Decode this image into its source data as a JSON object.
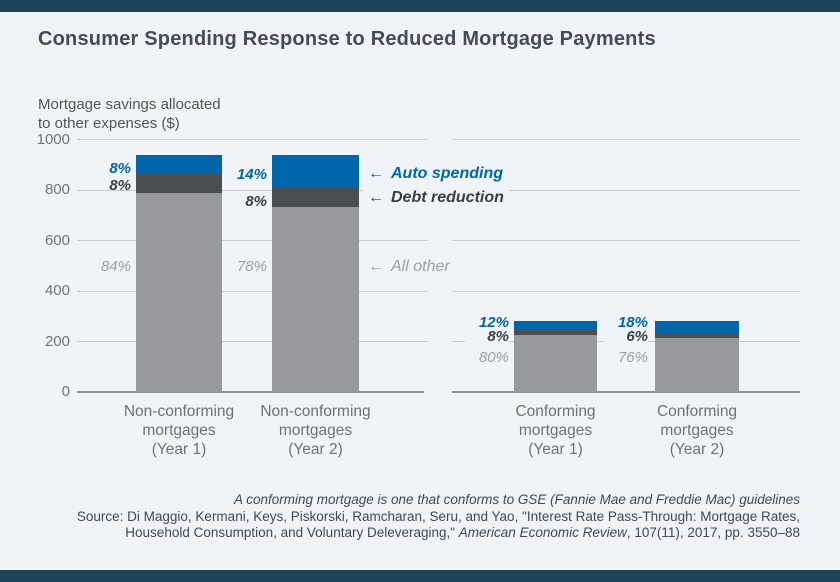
{
  "chart_data": {
    "type": "bar",
    "stacked": true,
    "title": "Consumer Spending Response to Reduced Mortgage Payments",
    "ylabel": "Mortgage savings allocated to other expenses ($)",
    "ylabel_lines": [
      "Mortgage savings allocated",
      "to other expenses ($)"
    ],
    "ylim": [
      0,
      1000
    ],
    "yticks": [
      0,
      200,
      400,
      600,
      800,
      1000
    ],
    "grid": "horizontal",
    "legend": [
      {
        "name": "Auto spending",
        "color": "#0065a9"
      },
      {
        "name": "Debt reduction",
        "color": "#4a4e53"
      },
      {
        "name": "All other",
        "color": "#97999e"
      }
    ],
    "groups": [
      {
        "category": [
          "Non-conforming",
          "mortgages",
          "(Year 1)"
        ],
        "total": 940,
        "segments": {
          "auto_pct": 8,
          "debt_pct": 8,
          "other_pct": 84
        }
      },
      {
        "category": [
          "Non-conforming",
          "mortgages",
          "(Year 2)"
        ],
        "total": 940,
        "segments": {
          "auto_pct": 14,
          "debt_pct": 8,
          "other_pct": 78
        }
      },
      {
        "category": [
          "Conforming",
          "mortgages",
          "(Year 1)"
        ],
        "total": 280,
        "segments": {
          "auto_pct": 12,
          "debt_pct": 8,
          "other_pct": 80
        }
      },
      {
        "category": [
          "Conforming",
          "mortgages",
          "(Year 2)"
        ],
        "total": 280,
        "segments": {
          "auto_pct": 18,
          "debt_pct": 6,
          "other_pct": 76
        }
      }
    ]
  },
  "ui": {
    "arrow": "←"
  },
  "footer": {
    "note": "A conforming mortgage is one that conforms to GSE (Fannie Mae and Freddie Mac) guidelines",
    "source_line": "Source: Di Maggio, Kermani, Keys, Piskorski, Ramcharan, Seru, and Yao, \"Interest Rate Pass-Through: Mortgage Rates,",
    "line3_prefix": "Household Consumption, and Voluntary Deleveraging,\" ",
    "line3_italic": "American Economic Review",
    "line3_suffix": ", 107(11), 2017, pp. 3550–88"
  }
}
